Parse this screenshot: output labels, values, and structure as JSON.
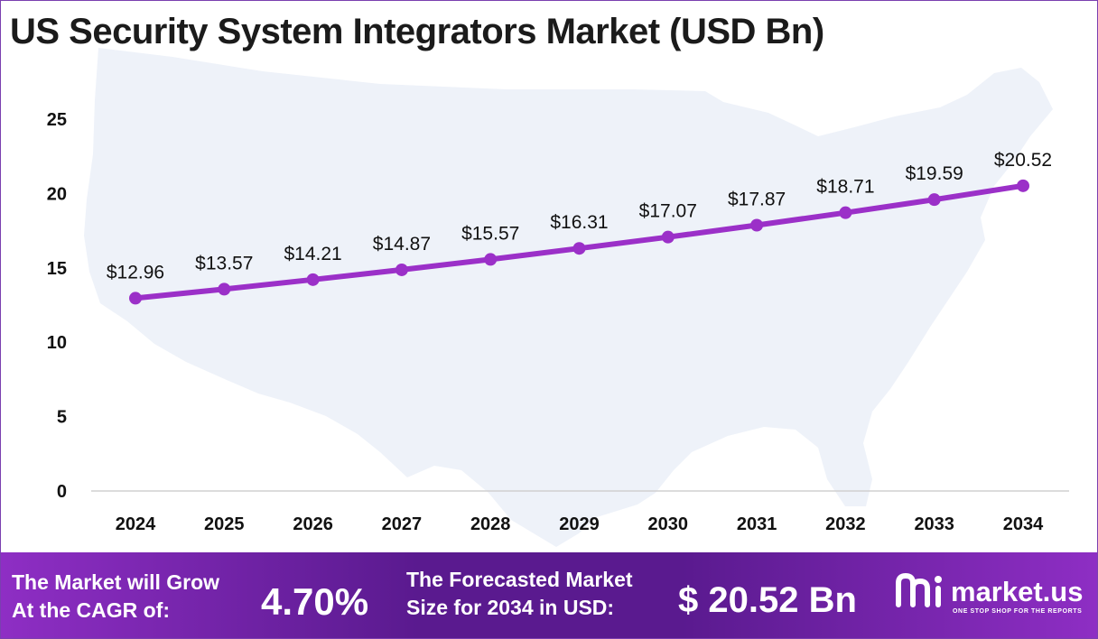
{
  "chart_data": {
    "type": "line",
    "title": "US Security System Integrators Market (USD Bn)",
    "categories": [
      "2024",
      "2025",
      "2026",
      "2027",
      "2028",
      "2029",
      "2030",
      "2031",
      "2032",
      "2033",
      "2034"
    ],
    "values": [
      12.96,
      13.57,
      14.21,
      14.87,
      15.57,
      16.31,
      17.07,
      17.87,
      18.71,
      19.59,
      20.52
    ],
    "data_labels": [
      "$12.96",
      "$13.57",
      "$14.21",
      "$14.87",
      "$15.57",
      "$16.31",
      "$17.07",
      "$17.87",
      "$18.71",
      "$19.59",
      "$20.52"
    ],
    "y_ticks": [
      0,
      5,
      10,
      15,
      20,
      25
    ],
    "ylim": [
      0,
      25
    ],
    "grid": false,
    "xlabel": "",
    "ylabel": "",
    "line_color": "#9b30c8",
    "background_map": "us-map-silhouette"
  },
  "footer": {
    "cagr_line1": "The Market will Grow",
    "cagr_line2": "At the CAGR of:",
    "cagr_value": "4.70%",
    "forecast_line1": "The Forecasted Market",
    "forecast_line2": "Size for 2034 in USD:",
    "forecast_value": "$ 20.52 Bn",
    "brand_name": "market.us",
    "brand_tagline": "ONE STOP SHOP FOR THE REPORTS",
    "brand_icon": "market-us-logo-icon"
  },
  "colors": {
    "accent": "#9b30c8",
    "footer_dark": "#5a1a8f",
    "footer_light": "#8e2ec4",
    "map": "#eef2f9"
  }
}
